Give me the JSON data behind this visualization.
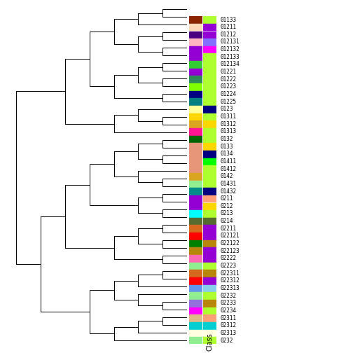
{
  "labels": [
    "01133",
    "01211",
    "01212",
    "012131",
    "012132",
    "012133",
    "012134",
    "01221",
    "01222",
    "01223",
    "01224",
    "01225",
    "0123",
    "01311",
    "01312",
    "01313",
    "0132",
    "0133",
    "0134",
    "01411",
    "01412",
    "0142",
    "01431",
    "01432",
    "0211",
    "0212",
    "0213",
    "0214",
    "02211",
    "022121",
    "022122",
    "022123",
    "02222",
    "02223",
    "022311",
    "022312",
    "022313",
    "02232",
    "02233",
    "02234",
    "02311",
    "02312",
    "02313",
    "0232"
  ],
  "bar1_colors": [
    "#8B2500",
    "#FFDAB9",
    "#4B0082",
    "#FFB6C1",
    "#9400D3",
    "#9400D3",
    "#32CD32",
    "#9400D3",
    "#2E8B57",
    "#7FFF00",
    "#000080",
    "#008080",
    "#FFFF99",
    "#FFD700",
    "#DAA520",
    "#FF1493",
    "#006400",
    "#E8967A",
    "#E8967A",
    "#E8967A",
    "#E8967A",
    "#DAA520",
    "#90EE90",
    "#008B8B",
    "#9400D3",
    "#9400D3",
    "#00FFFF",
    "#556B2F",
    "#D2691E",
    "#FF0000",
    "#008000",
    "#B8860B",
    "#FF69B4",
    "#90EE90",
    "#D2691E",
    "#FF0000",
    "#6495ED",
    "#90EE90",
    "#9370DB",
    "#FF00FF",
    "#DEB887",
    "#00CED1",
    "#FFFFE0",
    "#90EE90"
  ],
  "bar2_colors": [
    "#ADFF2F",
    "#9400D3",
    "#9400D3",
    "#8470FF",
    "#FF00FF",
    "#ADFF2F",
    "#ADFF2F",
    "#ADFF2F",
    "#ADFF2F",
    "#ADFF2F",
    "#ADFF2F",
    "#ADFF2F",
    "#000080",
    "#ADFF2F",
    "#FFD700",
    "#ADFF2F",
    "#ADFF2F",
    "#FFD700",
    "#000080",
    "#00FF00",
    "#ADFF2F",
    "#ADFF2F",
    "#ADFF2F",
    "#000080",
    "#FFA07A",
    "#FFD700",
    "#ADFF2F",
    "#556B2F",
    "#9400D3",
    "#9400D3",
    "#B8860B",
    "#9400D3",
    "#9400D3",
    "#ADFF2F",
    "#B8860B",
    "#9400D3",
    "#87CEEB",
    "#ADFF2F",
    "#B8860B",
    "#ADFF2F",
    "#FFA07A",
    "#00CED1",
    "#FFFFE0",
    "#ADFF2F"
  ],
  "background": "#FFFFFF",
  "xlabel": "Class",
  "dend_color": "#000000",
  "dend_gray": "#808080"
}
